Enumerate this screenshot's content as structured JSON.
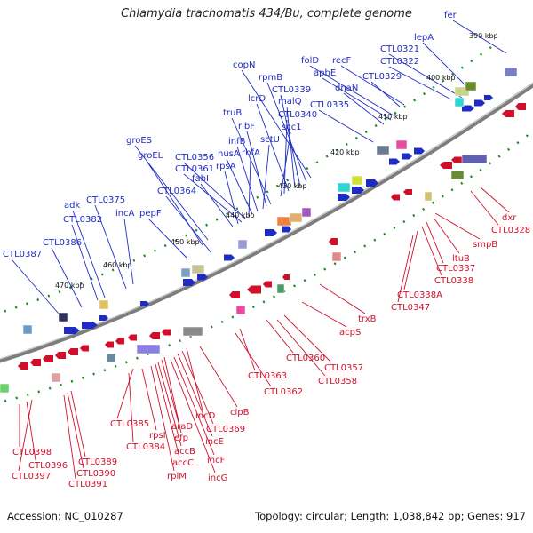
{
  "title": "Chlamydia trachomatis 434/Bu, complete genome",
  "footer": {
    "accession": "Accession: NC_010287",
    "summary": "Topology: circular; Length: 1,038,842 bp; Genes: 917"
  },
  "colors": {
    "forward_gene": "#1f2cc4",
    "reverse_gene": "#d0102a",
    "backbone": "#8a8a8a",
    "tick": "#1a8a1a"
  },
  "ticks": [
    "390 kbp",
    "400 kbp",
    "410 kbp",
    "420 kbp",
    "430 kbp",
    "440 kbp",
    "450 kbp",
    "460 kbp",
    "470 kbp"
  ],
  "forward_labels": [
    "fer",
    "lepA",
    "CTL0321",
    "CTL0322",
    "recF",
    "CTL0329",
    "folD",
    "apbE",
    "dnaN",
    "copN",
    "rpmB",
    "CTL0339",
    "malQ",
    "lcrD",
    "CTL0335",
    "CTL0340",
    "scc1",
    "truB",
    "ribF",
    "sctU",
    "groES",
    "infB",
    "nusA",
    "rbfA",
    "CTL0356",
    "groEL",
    "CTL0361",
    "rpsA",
    "fabI",
    "CTL0364",
    "CTL0375",
    "adk",
    "CTL0382",
    "incA",
    "pepF",
    "CTL0386",
    "CTL0387"
  ],
  "reverse_labels": [
    "dxr",
    "CTL0328",
    "smpB",
    "ltuB",
    "CTL0337",
    "CTL0338",
    "CTL0338A",
    "CTL0347",
    "trxB",
    "acpS",
    "CTL0357",
    "CTL0358",
    "CTL0360",
    "CTL0363",
    "CTL0362",
    "clpB",
    "incD",
    "CTL0369",
    "incE",
    "incF",
    "incG",
    "araD",
    "efp",
    "accB",
    "accC",
    "rplM",
    "rpsI",
    "CTL0385",
    "CTL0384",
    "CTL0389",
    "CTL0390",
    "CTL0391",
    "CTL0398",
    "CTL0396",
    "CTL0397"
  ]
}
